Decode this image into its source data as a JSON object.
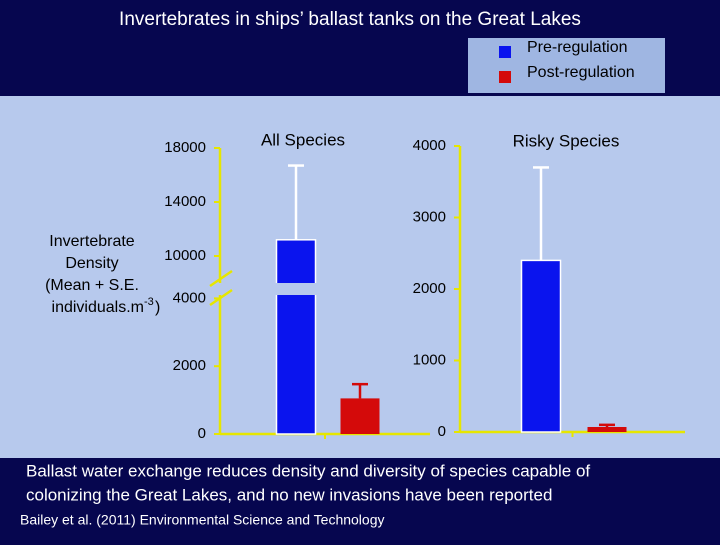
{
  "title": "Invertebrates in ships’ ballast tanks on the Great Lakes",
  "caption_lines": [
    "Ballast water exchange reduces density and diversity of species capable of",
    "colonizing the Great Lakes, and no new invasions have been reported"
  ],
  "citation": "Bailey et al. (2011)  Environmental Science and Technology",
  "y_label": {
    "lines": [
      "Invertebrate",
      "Density",
      "(Mean + S.E.",
      "individuals.m"
    ],
    "superscript": "-3",
    "end": ")"
  },
  "chart_data": [
    {
      "type": "bar",
      "title": "All Species",
      "categories": [
        null
      ],
      "ylim": [
        0,
        18000
      ],
      "yticks": [
        0,
        2000,
        4000,
        10000,
        14000,
        18000
      ],
      "axis_break": [
        4100,
        8000
      ],
      "series": [
        {
          "name": "Pre-regulation",
          "color": "#0a14ee",
          "values": [
            11200
          ],
          "errors": [
            5500
          ]
        },
        {
          "name": "Post-regulation",
          "color": "#d40a0a",
          "values": [
            1050
          ],
          "errors": [
            420
          ]
        }
      ]
    },
    {
      "type": "bar",
      "title": "Risky Species",
      "categories": [
        null
      ],
      "ylim": [
        0,
        4000
      ],
      "yticks": [
        0,
        1000,
        2000,
        3000,
        4000
      ],
      "series": [
        {
          "color": "#0a14ee",
          "values": [
            2400
          ],
          "errors": [
            1300
          ]
        },
        {
          "color": "#d40a0a",
          "values": [
            70
          ],
          "errors": [
            30
          ]
        }
      ]
    }
  ]
}
